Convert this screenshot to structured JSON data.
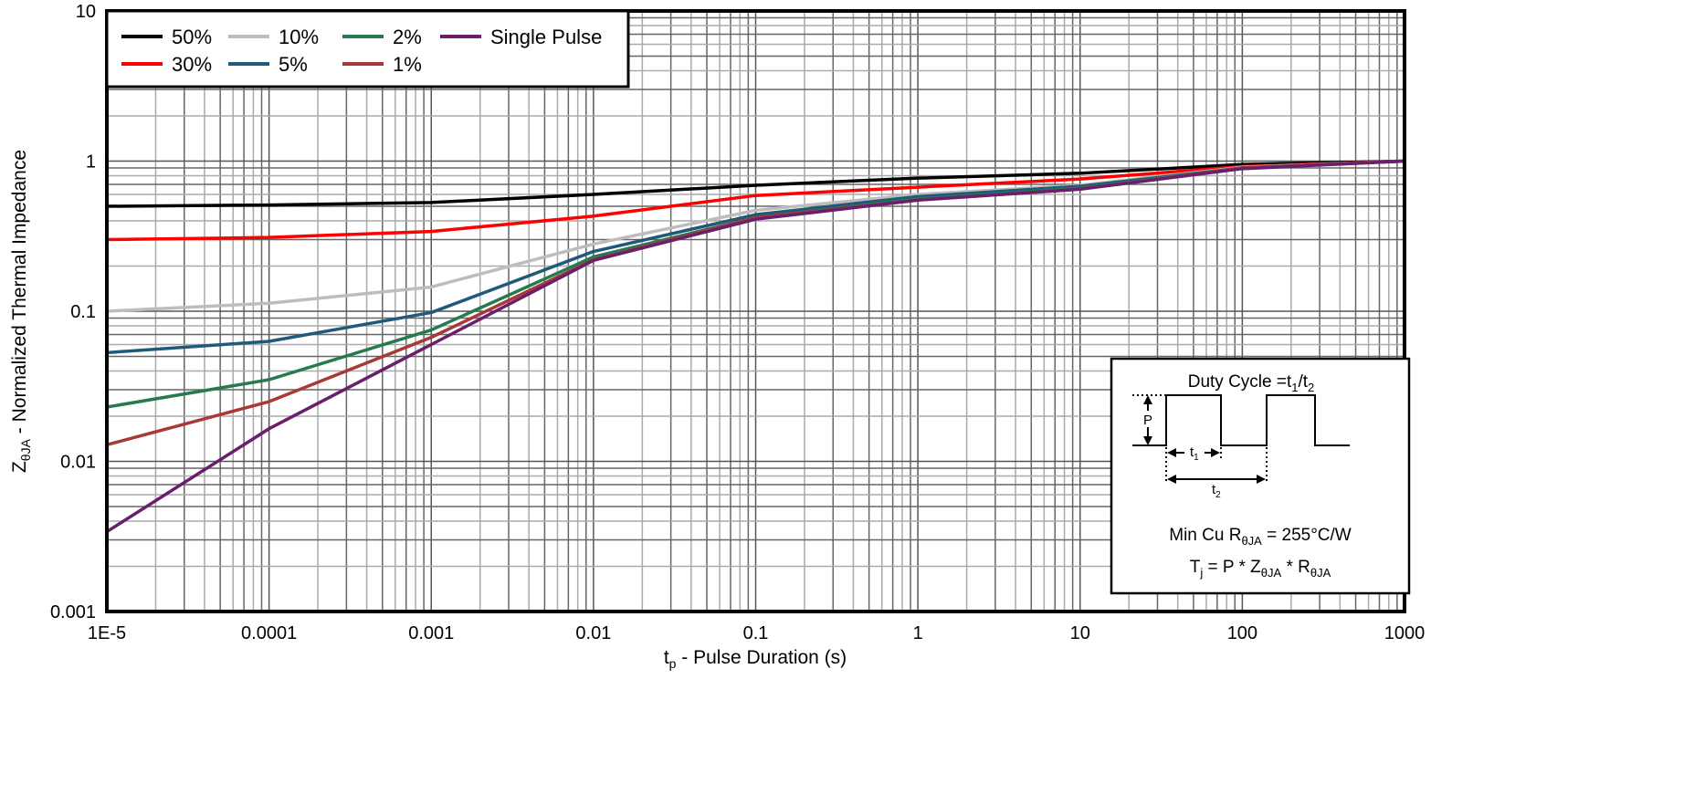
{
  "chart_data": {
    "type": "line",
    "xscale": "log",
    "yscale": "log",
    "xlim": [
      1e-05,
      1000
    ],
    "ylim": [
      0.001,
      10
    ],
    "grid": true,
    "legend_position": "top-left",
    "xlabel": {
      "main": "t",
      "sub": "p",
      "rest": " - Pulse Duration (s)"
    },
    "ylabel": {
      "main": "Z",
      "sub": "θJA",
      "rest": " - Normalized Thermal Impedance"
    },
    "xticks": [
      {
        "v": 1e-05,
        "label": "1E-5"
      },
      {
        "v": 0.0001,
        "label": "0.0001"
      },
      {
        "v": 0.001,
        "label": "0.001"
      },
      {
        "v": 0.01,
        "label": "0.01"
      },
      {
        "v": 0.1,
        "label": "0.1"
      },
      {
        "v": 1,
        "label": "1"
      },
      {
        "v": 10,
        "label": "10"
      },
      {
        "v": 100,
        "label": "100"
      },
      {
        "v": 1000,
        "label": "1000"
      }
    ],
    "yticks": [
      {
        "v": 0.001,
        "label": "0.001"
      },
      {
        "v": 0.01,
        "label": "0.01"
      },
      {
        "v": 0.1,
        "label": "0.1"
      },
      {
        "v": 1,
        "label": "1"
      },
      {
        "v": 10,
        "label": "10"
      }
    ],
    "x": [
      1e-05,
      0.0001,
      0.001,
      0.01,
      0.1,
      1,
      10,
      100,
      1000
    ],
    "series": [
      {
        "name": "50%",
        "color": "#000000",
        "values": [
          0.5,
          0.51,
          0.53,
          0.6,
          0.69,
          0.77,
          0.83,
          0.95,
          1.0
        ]
      },
      {
        "name": "30%",
        "color": "#ff0000",
        "values": [
          0.3,
          0.31,
          0.34,
          0.43,
          0.59,
          0.67,
          0.76,
          0.92,
          1.0
        ]
      },
      {
        "name": "10%",
        "color": "#bdbdbd",
        "values": [
          0.1,
          0.113,
          0.145,
          0.28,
          0.47,
          0.6,
          0.69,
          0.91,
          1.0
        ]
      },
      {
        "name": "5%",
        "color": "#1f5a7a",
        "values": [
          0.053,
          0.063,
          0.098,
          0.25,
          0.44,
          0.58,
          0.68,
          0.9,
          1.0
        ]
      },
      {
        "name": "2%",
        "color": "#267a4e",
        "values": [
          0.023,
          0.035,
          0.075,
          0.23,
          0.42,
          0.56,
          0.66,
          0.9,
          1.0
        ]
      },
      {
        "name": "1%",
        "color": "#a83a35",
        "values": [
          0.0129,
          0.025,
          0.067,
          0.22,
          0.42,
          0.55,
          0.65,
          0.9,
          1.0
        ]
      },
      {
        "name": "Single Pulse",
        "color": "#6a1f6e",
        "values": [
          0.0034,
          0.0165,
          0.06,
          0.218,
          0.41,
          0.55,
          0.65,
          0.89,
          1.0
        ]
      }
    ],
    "inset": {
      "duty_cycle": "Duty Cycle =t",
      "duty_sub1": "1",
      "duty_slash": "/t",
      "duty_sub2": "2",
      "p_label": "P",
      "t1": "t",
      "t1_sub": "1",
      "t2": "t",
      "t2_sub": "2",
      "line1_a": "Min Cu R",
      "line1_sub": "θJA",
      "line1_b": " = 255°C/W",
      "line2_a": "T",
      "line2_sub1": "j",
      "line2_b": " = P * Z",
      "line2_sub2": "θJA",
      "line2_c": " * R",
      "line2_sub3": "θJA"
    }
  }
}
